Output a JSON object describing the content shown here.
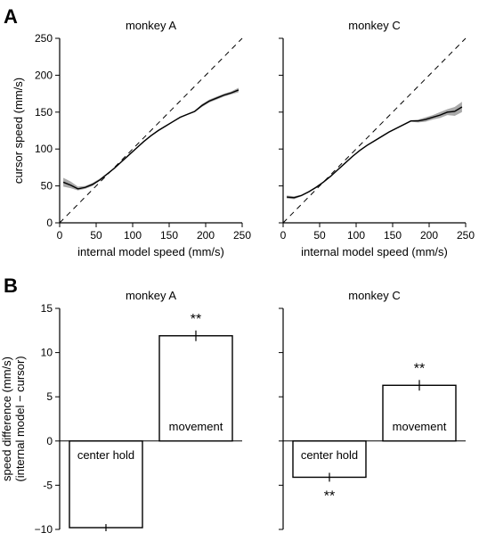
{
  "panels": [
    {
      "letter": "A"
    },
    {
      "letter": "B"
    }
  ],
  "chart_data": [
    {
      "type": "line",
      "panel": "A",
      "title": "monkey A",
      "xlabel": "internal model speed (mm/s)",
      "ylabel": "cursor speed (mm/s)",
      "xlim": [
        0,
        250
      ],
      "ylim": [
        0,
        250
      ],
      "xticks": [
        0,
        50,
        100,
        150,
        200,
        250
      ],
      "yticks": [
        0,
        50,
        100,
        150,
        200,
        250
      ],
      "grid": false,
      "series": [
        {
          "style": "solid-with-sem-band",
          "color": "#000000",
          "band_color": "#9a9a9a",
          "x": [
            5,
            15,
            25,
            35,
            45,
            55,
            65,
            75,
            85,
            95,
            105,
            115,
            125,
            135,
            145,
            155,
            165,
            175,
            185,
            195,
            205,
            215,
            225,
            235,
            245
          ],
          "y": [
            55,
            51,
            46,
            48,
            52,
            58,
            66,
            74,
            83,
            92,
            101,
            110,
            118,
            125,
            131,
            137,
            143,
            147,
            151,
            159,
            165,
            169,
            173,
            176,
            180
          ],
          "y_low": [
            49,
            47,
            44,
            46,
            50,
            57,
            65,
            73,
            82,
            91,
            100,
            109,
            117,
            124,
            130,
            136,
            142,
            146,
            150,
            157,
            163,
            167,
            171,
            174,
            177
          ],
          "y_high": [
            61,
            56,
            49,
            50,
            54,
            60,
            67,
            75,
            84,
            93,
            102,
            111,
            119,
            126,
            132,
            138,
            144,
            148,
            152,
            161,
            167,
            171,
            175,
            178,
            183
          ]
        },
        {
          "style": "dashed-identity",
          "color": "#000000",
          "x": [
            0,
            250
          ],
          "y": [
            0,
            250
          ]
        }
      ]
    },
    {
      "type": "line",
      "panel": "A",
      "title": "monkey C",
      "xlabel": "internal model speed (mm/s)",
      "ylabel": "",
      "xlim": [
        0,
        250
      ],
      "ylim": [
        0,
        250
      ],
      "xticks": [
        0,
        50,
        100,
        150,
        200,
        250
      ],
      "yticks": [
        0,
        50,
        100,
        150,
        200,
        250
      ],
      "grid": false,
      "series": [
        {
          "style": "solid-with-sem-band",
          "color": "#000000",
          "band_color": "#9a9a9a",
          "x": [
            5,
            15,
            25,
            35,
            45,
            55,
            65,
            75,
            85,
            95,
            105,
            115,
            125,
            135,
            145,
            155,
            165,
            175,
            185,
            195,
            205,
            215,
            225,
            235,
            245
          ],
          "y": [
            35,
            34,
            37,
            42,
            48,
            55,
            63,
            72,
            81,
            90,
            98,
            105,
            111,
            117,
            123,
            128,
            133,
            138,
            138,
            140,
            143,
            146,
            150,
            151,
            157
          ],
          "y_low": [
            33,
            32,
            36,
            41,
            47,
            54,
            62,
            71,
            80,
            89,
            97,
            104,
            110,
            116,
            122,
            127,
            132,
            137,
            136,
            137,
            140,
            142,
            146,
            145,
            150
          ],
          "y_high": [
            37,
            36,
            38,
            43,
            49,
            56,
            64,
            73,
            82,
            91,
            99,
            106,
            112,
            118,
            124,
            129,
            134,
            139,
            140,
            143,
            146,
            150,
            154,
            157,
            164
          ]
        },
        {
          "style": "dashed-identity",
          "color": "#000000",
          "x": [
            0,
            250
          ],
          "y": [
            0,
            250
          ]
        }
      ]
    },
    {
      "type": "bar",
      "panel": "B",
      "title": "monkey A",
      "ylabel": "speed difference (mm/s)",
      "ylabel2": "(internal model − cursor)",
      "ylim": [
        -10,
        15
      ],
      "yticks": [
        -10,
        -5,
        0,
        5,
        10,
        15
      ],
      "ytick_labels": [
        "−10",
        "-5",
        "0",
        "5",
        "10",
        "15"
      ],
      "categories": [
        "center hold",
        "movement"
      ],
      "values": [
        -9.8,
        11.9
      ],
      "errors": [
        0.2,
        0.4
      ],
      "significance": [
        "**",
        "**"
      ],
      "grid": false
    },
    {
      "type": "bar",
      "panel": "B",
      "title": "monkey C",
      "ylabel": "",
      "ylim": [
        -10,
        15
      ],
      "yticks": [
        -10,
        -5,
        0,
        5,
        10,
        15
      ],
      "categories": [
        "center hold",
        "movement"
      ],
      "values": [
        -4.1,
        6.3
      ],
      "errors": [
        0.3,
        0.4
      ],
      "significance": [
        "**",
        "**"
      ],
      "grid": false
    }
  ]
}
